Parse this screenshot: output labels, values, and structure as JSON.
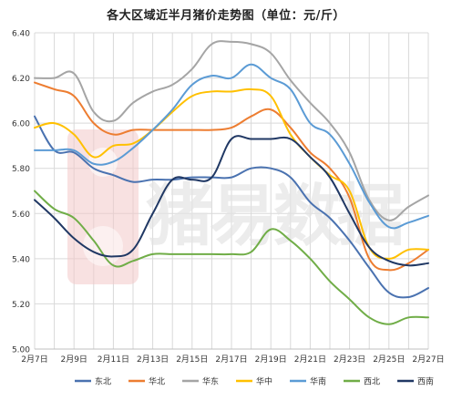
{
  "chart_data": {
    "type": "line",
    "title": "各大区域近半月猪价走势图（单位：元/斤）",
    "xlabel": "",
    "ylabel": "",
    "ylim": [
      5.0,
      6.4
    ],
    "yticks": [
      "5.00",
      "5.20",
      "5.40",
      "5.60",
      "5.80",
      "6.00",
      "6.20",
      "6.40"
    ],
    "x": [
      "2月7日",
      "2月8日",
      "2月9日",
      "2月10日",
      "2月11日",
      "2月12日",
      "2月13日",
      "2月14日",
      "2月15日",
      "2月16日",
      "2月17日",
      "2月18日",
      "2月19日",
      "2月20日",
      "2月21日",
      "2月22日",
      "2月23日",
      "2月24日",
      "2月25日",
      "2月26日",
      "2月27日"
    ],
    "xtick_labels": [
      "2月7日",
      "",
      "2月9日",
      "",
      "2月11日",
      "",
      "2月13日",
      "",
      "2月15日",
      "",
      "2月17日",
      "",
      "2月19日",
      "",
      "2月21日",
      "",
      "2月23日",
      "",
      "2月25日",
      "",
      "2月27日"
    ],
    "grid": true,
    "legend_position": "bottom",
    "watermark": "猪易数据",
    "series": [
      {
        "name": "东北",
        "color": "#4a72b0",
        "values": [
          6.03,
          5.88,
          5.87,
          5.8,
          5.77,
          5.74,
          5.75,
          5.75,
          5.76,
          5.76,
          5.76,
          5.8,
          5.8,
          5.76,
          5.65,
          5.58,
          5.48,
          5.36,
          5.25,
          5.23,
          5.27
        ]
      },
      {
        "name": "华北",
        "color": "#ed7d31",
        "values": [
          6.18,
          6.15,
          6.12,
          6.0,
          5.95,
          5.97,
          5.97,
          5.97,
          5.97,
          5.97,
          5.98,
          6.03,
          6.06,
          5.98,
          5.87,
          5.8,
          5.67,
          5.4,
          5.35,
          5.38,
          5.44
        ]
      },
      {
        "name": "华东",
        "color": "#a5a5a5",
        "values": [
          6.2,
          6.2,
          6.22,
          6.05,
          6.01,
          6.09,
          6.14,
          6.17,
          6.24,
          6.35,
          6.36,
          6.35,
          6.31,
          6.19,
          6.09,
          6.0,
          5.87,
          5.66,
          5.57,
          5.63,
          5.68
        ]
      },
      {
        "name": "华中",
        "color": "#ffc000",
        "values": [
          5.98,
          6.0,
          5.95,
          5.85,
          5.9,
          5.91,
          5.97,
          6.05,
          6.12,
          6.14,
          6.14,
          6.15,
          6.12,
          5.95,
          5.85,
          5.77,
          5.7,
          5.45,
          5.4,
          5.44,
          5.44
        ]
      },
      {
        "name": "华南",
        "color": "#5b9bd5",
        "values": [
          5.88,
          5.88,
          5.88,
          5.82,
          5.83,
          5.89,
          5.97,
          6.06,
          6.17,
          6.21,
          6.2,
          6.26,
          6.2,
          6.15,
          6.0,
          5.95,
          5.82,
          5.65,
          5.54,
          5.56,
          5.59
        ]
      },
      {
        "name": "西北",
        "color": "#70ad47",
        "values": [
          5.7,
          5.62,
          5.58,
          5.48,
          5.37,
          5.39,
          5.42,
          5.42,
          5.42,
          5.42,
          5.42,
          5.43,
          5.53,
          5.48,
          5.4,
          5.3,
          5.22,
          5.14,
          5.11,
          5.14,
          5.14
        ]
      },
      {
        "name": "西南",
        "color": "#203864",
        "values": [
          5.66,
          5.58,
          5.49,
          5.43,
          5.41,
          5.44,
          5.6,
          5.75,
          5.75,
          5.76,
          5.93,
          5.93,
          5.93,
          5.93,
          5.85,
          5.76,
          5.6,
          5.45,
          5.39,
          5.37,
          5.38
        ]
      }
    ]
  }
}
